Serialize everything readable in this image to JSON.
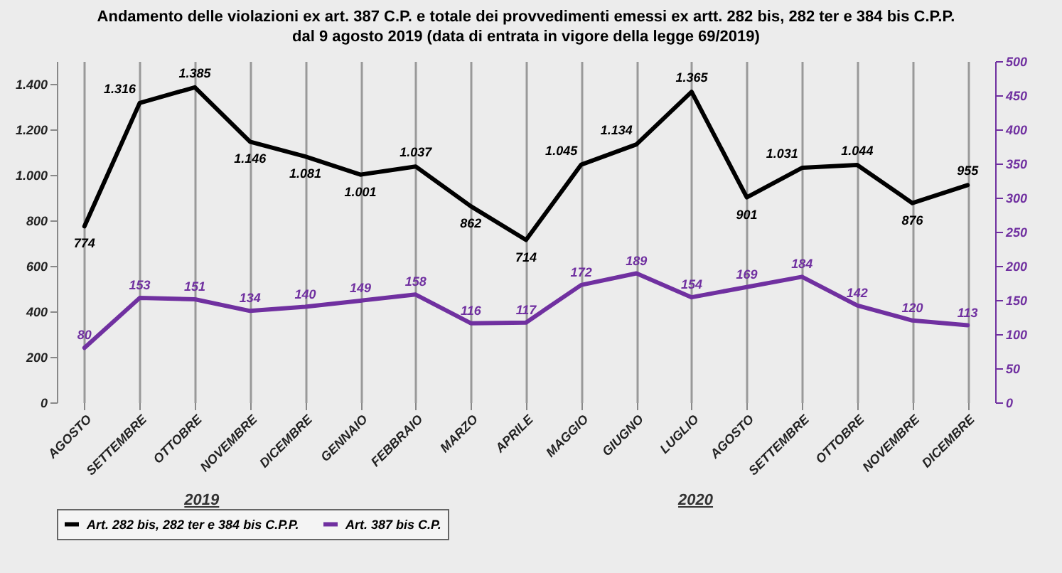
{
  "chart_data": {
    "type": "line",
    "title": "Andamento delle violazioni ex art. 387 C.P. e totale dei provvedimenti emessi ex artt. 282 bis, 282 ter e 384 bis C.P.P.",
    "subtitle": "dal 9 agosto 2019 (data di entrata in vigore della legge 69/2019)",
    "categories": [
      "AGOSTO",
      "SETTEMBRE",
      "OTTOBRE",
      "NOVEMBRE",
      "DICEMBRE",
      "GENNAIO",
      "FEBBRAIO",
      "MARZO",
      "APRILE",
      "MAGGIO",
      "GIUGNO",
      "LUGLIO",
      "AGOSTO",
      "SETTEMBRE",
      "OTTOBRE",
      "NOVEMBRE",
      "DICEMBRE"
    ],
    "series": [
      {
        "name": "Art. 282 bis, 282 ter e 384 bis C.P.P.",
        "color": "#000000",
        "values": [
          774,
          1316,
          1385,
          1146,
          1081,
          1001,
          1037,
          862,
          714,
          1045,
          1134,
          1365,
          901,
          1031,
          1044,
          876,
          955
        ],
        "value_labels": [
          "774",
          "1.316",
          "1.385",
          "1.146",
          "1.081",
          "1.001",
          "1.037",
          "862",
          "714",
          "1.045",
          "1.134",
          "1.365",
          "901",
          "1.031",
          "1.044",
          "876",
          "955"
        ]
      },
      {
        "name": "Art. 387 bis C.P.",
        "color": "#7030a0",
        "axis": "y2",
        "values": [
          80,
          153,
          151,
          134,
          140,
          149,
          158,
          116,
          117,
          172,
          189,
          154,
          169,
          184,
          142,
          120,
          113
        ],
        "value_labels": [
          "80",
          "153",
          "151",
          "134",
          "140",
          "149",
          "158",
          "116",
          "117",
          "172",
          "189",
          "154",
          "169",
          "184",
          "142",
          "120",
          "113"
        ]
      }
    ],
    "ylim": [
      0,
      1500
    ],
    "yticks": [
      0,
      200,
      400,
      600,
      800,
      {
        "value": 1000,
        "label": "1.000"
      },
      {
        "value": 1200,
        "label": "1.200"
      },
      {
        "value": 1400,
        "label": "1.400"
      }
    ],
    "y2lim": [
      0,
      500
    ],
    "y2ticks": [
      0,
      50,
      100,
      150,
      200,
      250,
      300,
      350,
      400,
      450,
      500
    ],
    "annotations": [
      "2019",
      "2020"
    ],
    "grid": "x",
    "legend": "bottom",
    "marker": "none",
    "line_style": "solid"
  }
}
